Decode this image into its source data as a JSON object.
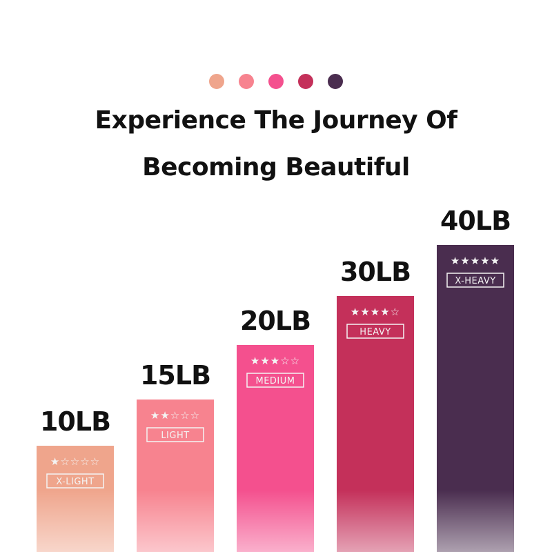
{
  "title_lines": [
    "Experience The Journey Of",
    "Becoming Beautiful"
  ],
  "chart_data": {
    "type": "bar",
    "title": "Experience The Journey Of Becoming Beautiful",
    "categories": [
      "10LB",
      "15LB",
      "20LB",
      "30LB",
      "40LB"
    ],
    "values": [
      10,
      15,
      20,
      30,
      40
    ],
    "unit": "LB",
    "levels": [
      "X-LIGHT",
      "LIGHT",
      "MEDIUM",
      "HEAVY",
      "X-HEAVY"
    ],
    "stars": [
      1,
      2,
      3,
      4,
      5
    ],
    "max_stars": 5,
    "colors": [
      "#EFA58C",
      "#F7838F",
      "#F4508E",
      "#C4305A",
      "#4A2D4F"
    ],
    "grid": false,
    "legend": "none"
  }
}
